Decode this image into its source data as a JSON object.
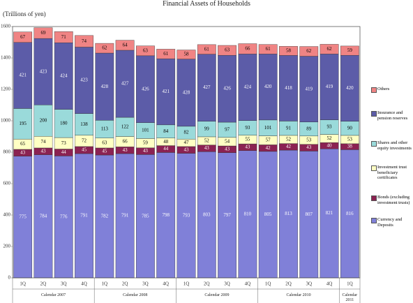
{
  "chart_data": {
    "type": "stacked_bar",
    "title": "Financial Assets of Households",
    "unit_label": "(Trillions of yen)",
    "groups": [
      {
        "label": "Calendar 2007",
        "categories": [
          "1Q",
          "2Q",
          "3Q",
          "4Q"
        ]
      },
      {
        "label": "Calendar 2008",
        "categories": [
          "1Q",
          "2Q",
          "3Q",
          "4Q"
        ]
      },
      {
        "label": "Calendar 2009",
        "categories": [
          "1Q",
          "2Q",
          "3Q",
          "4Q"
        ]
      },
      {
        "label": "Calendar 2010",
        "categories": [
          "1Q",
          "2Q",
          "3Q",
          "4Q"
        ]
      },
      {
        "label": "Calendar 2011",
        "categories": [
          "1Q"
        ]
      }
    ],
    "series": [
      {
        "name": "Currency and Deposits",
        "color": "#8080d8",
        "label_color": "#ffffff",
        "values": [
          775,
          784,
          776,
          791,
          782,
          791,
          785,
          798,
          793,
          803,
          797,
          810,
          805,
          813,
          807,
          821,
          816
        ]
      },
      {
        "name": "Bonds (excluding investment trusts)",
        "color": "#8b2252",
        "label_color": "#ffffff",
        "values": [
          43,
          43,
          44,
          45,
          45,
          43,
          43,
          44,
          43,
          43,
          43,
          43,
          42,
          42,
          43,
          40,
          38
        ]
      },
      {
        "name": "Investment trust beneficiary certificates",
        "color": "#ffffc4",
        "label_color": "#000000",
        "values": [
          65,
          74,
          73,
          72,
          63,
          66,
          59,
          48,
          47,
          52,
          54,
          55,
          57,
          52,
          53,
          52,
          53
        ]
      },
      {
        "name": "Shares and other equity investments",
        "color": "#9adada",
        "label_color": "#000000",
        "values": [
          195,
          200,
          180,
          138,
          113,
          122,
          101,
          84,
          82,
          99,
          97,
          93,
          101,
          91,
          89,
          93,
          90
        ]
      },
      {
        "name": "Insurance and pension reserves",
        "color": "#5c5ca8",
        "label_color": "#ffffff",
        "values": [
          421,
          423,
          424,
          423,
          428,
          427,
          426,
          421,
          428,
          427,
          426,
          424,
          420,
          418,
          419,
          419,
          420
        ]
      },
      {
        "name": "Others",
        "color": "#f08484",
        "label_color": "#000000",
        "values": [
          67,
          69,
          71,
          74,
          62,
          64,
          63,
          61,
          58,
          61,
          63,
          66,
          61,
          58,
          62,
          62,
          59
        ]
      }
    ],
    "ylim": [
      0,
      1600
    ],
    "yticks": [
      0,
      200,
      400,
      600,
      800,
      1000,
      1200,
      1400,
      1600
    ],
    "grid": false
  }
}
